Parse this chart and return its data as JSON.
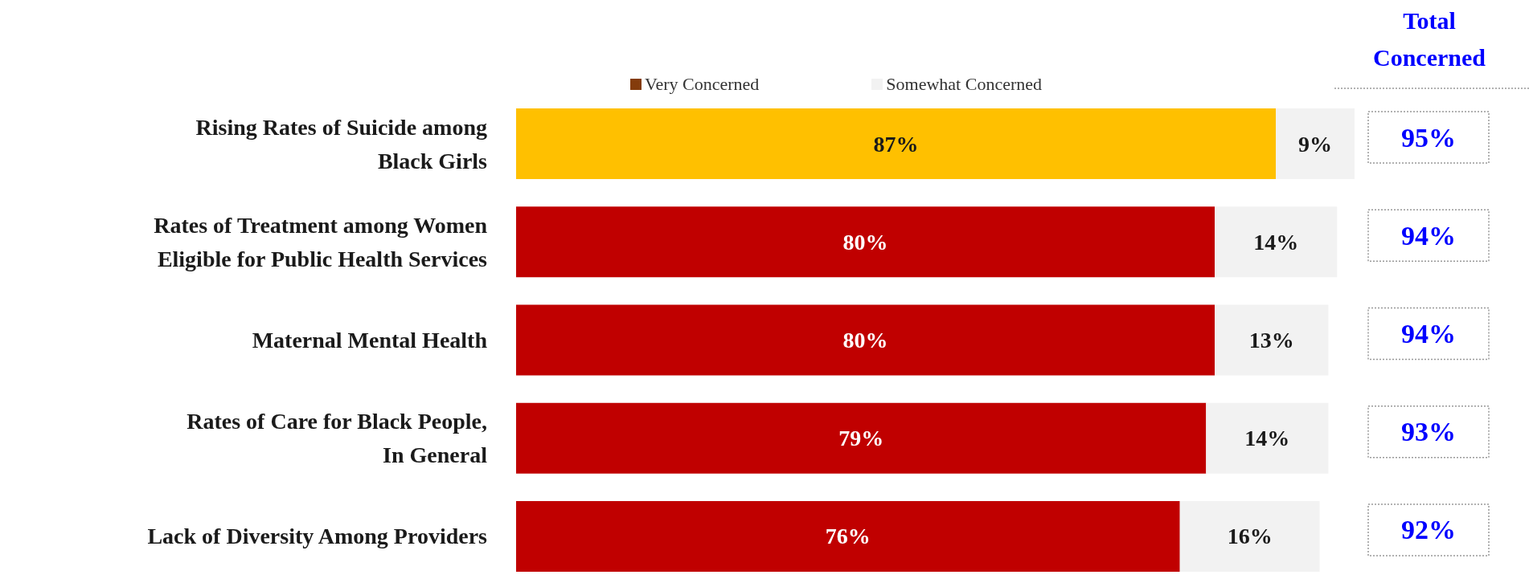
{
  "chart_data": {
    "type": "bar",
    "orientation": "horizontal",
    "stacked": true,
    "legend": "top",
    "categories": [
      "Rising Rates of Suicide among\nBlack Girls",
      "Rates of Treatment among Women\nEligible for Public Health Services",
      "Maternal Mental Health",
      "Rates of Care for Black People,\nIn General",
      "Lack of Diversity Among Providers"
    ],
    "series": [
      {
        "name": "Very Concerned",
        "color": "#843c0c",
        "colors": [
          "#ffc000",
          "#c00000",
          "#c00000",
          "#c00000",
          "#c00000"
        ],
        "values": [
          87,
          80,
          80,
          79,
          76
        ],
        "value_labels": [
          "87%",
          "80%",
          "80%",
          "79%",
          "76%"
        ]
      },
      {
        "name": "Somewhat Concerned",
        "color": "#f2f2f2",
        "values": [
          9,
          14,
          13,
          14,
          16
        ],
        "value_labels": [
          "9%",
          "14%",
          "13%",
          "14%",
          "16%"
        ]
      }
    ],
    "totals": [
      "95%",
      "94%",
      "94%",
      "93%",
      "92%"
    ],
    "annotations": [
      "Total\nConcerned"
    ]
  }
}
